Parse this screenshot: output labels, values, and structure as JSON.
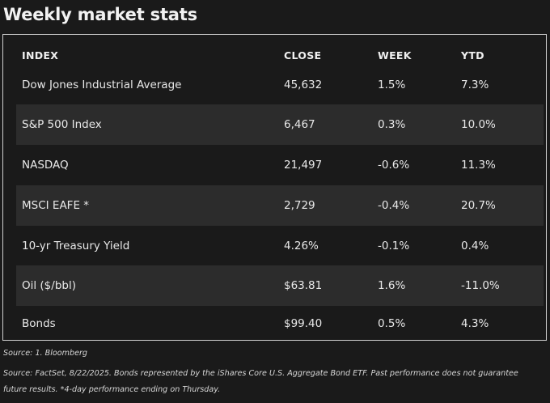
{
  "title": "Weekly market stats",
  "table": {
    "columns": [
      "INDEX",
      "CLOSE",
      "WEEK",
      "YTD"
    ],
    "rows": [
      {
        "index": "Dow Jones Industrial Average",
        "close": "45,632",
        "week": "1.5%",
        "ytd": "7.3%"
      },
      {
        "index": "S&P 500 Index",
        "close": "6,467",
        "week": "0.3%",
        "ytd": "10.0%"
      },
      {
        "index": "NASDAQ",
        "close": "21,497",
        "week": "-0.6%",
        "ytd": "11.3%"
      },
      {
        "index": "MSCI EAFE *",
        "close": "2,729",
        "week": "-0.4%",
        "ytd": "20.7%"
      },
      {
        "index": "10-yr Treasury Yield",
        "close": "4.26%",
        "week": "-0.1%",
        "ytd": "0.4%"
      },
      {
        "index": "Oil ($/bbl)",
        "close": "$63.81",
        "week": "1.6%",
        "ytd": "-11.0%"
      },
      {
        "index": "Bonds",
        "close": "$99.40",
        "week": "0.5%",
        "ytd": "4.3%"
      }
    ]
  },
  "footnotes": {
    "source1": "Source: 1. Bloomberg",
    "source2_line1": "Source: FactSet, 8/22/2025. Bonds represented by the iShares Core U.S. Aggregate Bond ETF. Past performance does not guarantee",
    "source2_line2": "future results. *4-day performance ending on Thursday."
  },
  "colors": {
    "background": "#1a1a1a",
    "shaded_row": "#2c2c2c",
    "border": "#cfcfcf",
    "text": "#ececec"
  }
}
